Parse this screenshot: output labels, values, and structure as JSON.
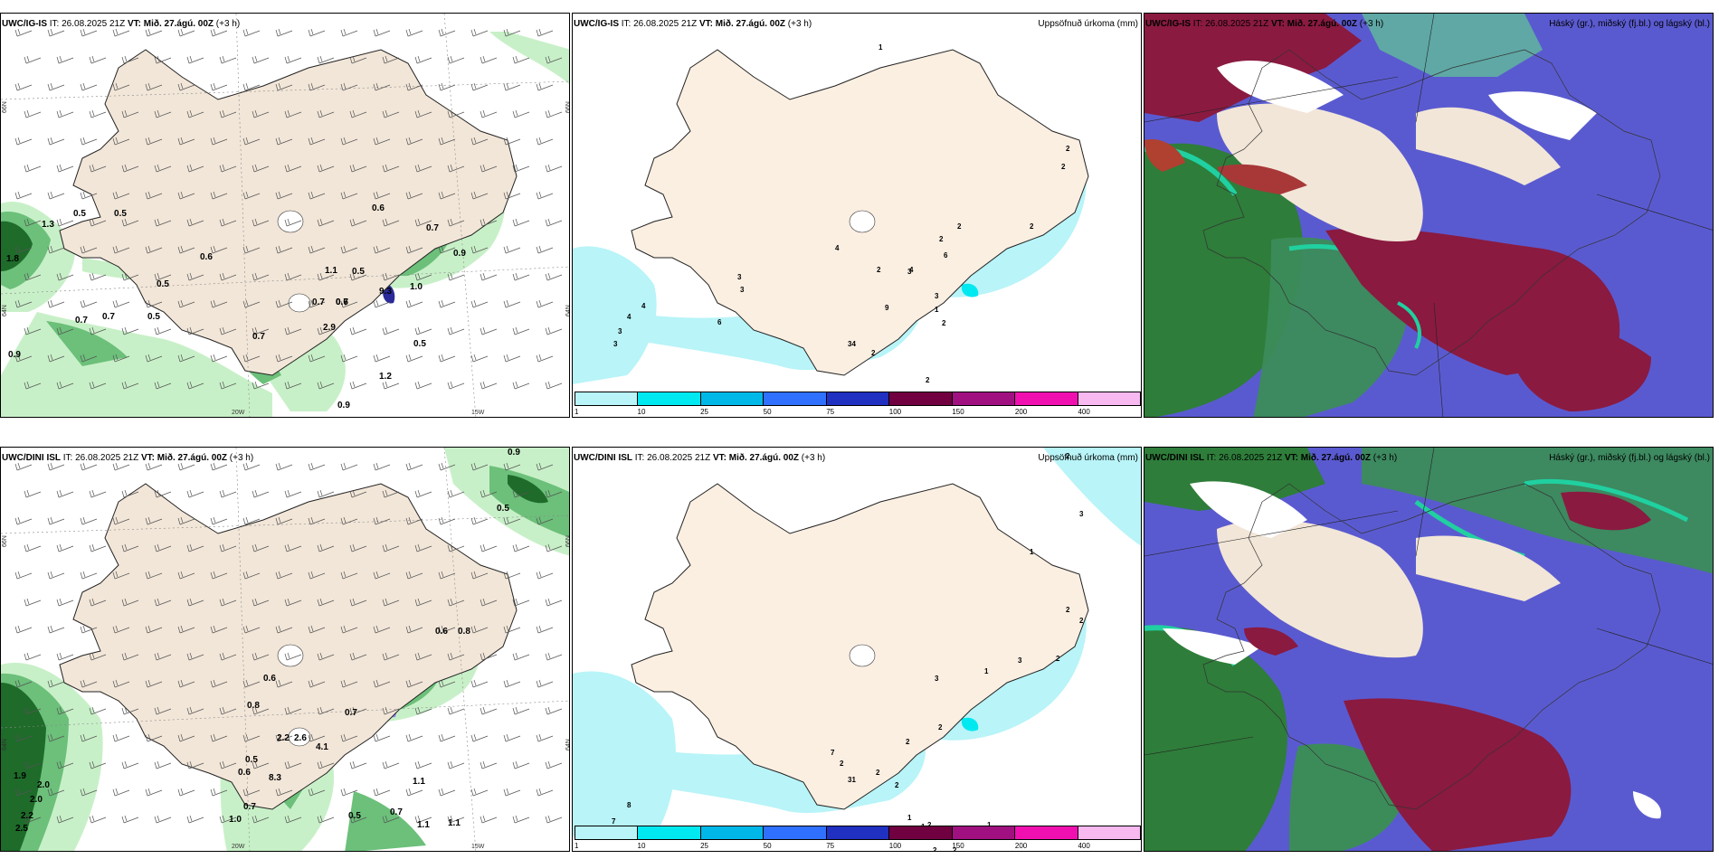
{
  "colors": {
    "land": "#f2e6d8",
    "land_precip": "#fbefe2",
    "sea": "#ffffff",
    "cyan_light": "#b8f4f8",
    "green_light": "#c8f0c8",
    "green_mid": "#6cc07a",
    "green_dark": "#1e6b2a",
    "blue_dark": "#2a2a9a",
    "high_cloud": "#2e7d3a",
    "mid_cloud": "#8a1a40",
    "low_cloud": "#5a5ad0",
    "cloud_edge": "#20d0a0"
  },
  "legend": {
    "colors": [
      "#b8f4f8",
      "#00e8f0",
      "#00b8e8",
      "#3070ff",
      "#2030c0",
      "#700040",
      "#a01080",
      "#f010b0",
      "#f8b8f0"
    ],
    "labels": [
      "1",
      "10",
      "25",
      "50",
      "75",
      "100",
      "150",
      "200",
      "400"
    ]
  },
  "axis": {
    "lat_66": "66N",
    "lat_64": "64N",
    "lon_20": "20W",
    "lon_15": "15W"
  },
  "panels": [
    {
      "model": "UWC/IG-IS",
      "it_label": "IT:",
      "it_value": "26.08.2025 21Z",
      "vt_label": "VT:",
      "vt_value": "Mið. 27.ágú. 00Z",
      "lead": "(+3 h)",
      "right_title": ""
    },
    {
      "model": "UWC/IG-IS",
      "it_label": "IT:",
      "it_value": "26.08.2025 21Z",
      "vt_label": "VT:",
      "vt_value": "Mið. 27.ágú. 00Z",
      "lead": "(+3 h)",
      "right_title": "Uppsöfnuð úrkoma (mm)"
    },
    {
      "model": "UWC/IG-IS",
      "it_label": "IT:",
      "it_value": "26.08.2025 21Z",
      "vt_label": "VT:",
      "vt_value": "Mið. 27.ágú. 00Z",
      "lead": "(+3 h)",
      "right_title": "Háský (gr.), miðský (fj.bl.) og lágský (bl.)"
    },
    {
      "model": "UWC/DINI ISL",
      "it_label": "IT:",
      "it_value": "26.08.2025 21Z",
      "vt_label": "VT:",
      "vt_value": "Mið. 27.ágú. 00Z",
      "lead": "(+3 h)",
      "right_title": ""
    },
    {
      "model": "UWC/DINI ISL",
      "it_label": "IT:",
      "it_value": "26.08.2025 21Z",
      "vt_label": "VT:",
      "vt_value": "Mið. 27.ágú. 00Z",
      "lead": "(+3 h)",
      "right_title": "Uppsöfnuð úrkoma (mm)"
    },
    {
      "model": "UWC/DINI ISL",
      "it_label": "IT:",
      "it_value": "26.08.2025 21Z",
      "vt_label": "VT:",
      "vt_value": "Mið. 27.ágú. 00Z",
      "lead": "(+3 h)",
      "right_title": "Háský (gr.), miðský (fj.bl.) og lágský (bl.)"
    }
  ],
  "precip_labels_top": [
    "0.5",
    "0.5",
    "1.3",
    "1.8",
    "0.7",
    "0.7",
    "0.5",
    "0.9",
    "0.6",
    "0.5",
    "0.7",
    "2.9",
    "0.7",
    "0.6",
    "0.7",
    "1.1",
    "0.5",
    "9.3",
    "0.7",
    "1.0",
    "0.9",
    "0.6",
    "0.5",
    "1.2",
    "0.9"
  ],
  "precip_labels_bottom": [
    "0.9",
    "0.5",
    "0.6",
    "0.8",
    "0.6",
    "0.8",
    "0.7",
    "2.2",
    "2.6",
    "4.1",
    "8.3",
    "0.5",
    "0.6",
    "1.1",
    "1.9",
    "2.0",
    "2.0",
    "2.2",
    "2.5",
    "1.0",
    "0.7",
    "0.5",
    "0.7",
    "1.1",
    "1.1"
  ],
  "accum_labels_top": [
    "1",
    "2",
    "2",
    "2",
    "2",
    "2",
    "4",
    "3",
    "3",
    "6",
    "4",
    "2",
    "3",
    "9",
    "3",
    "1",
    "2",
    "4",
    "4",
    "3",
    "3",
    "6",
    "34",
    "2",
    "2"
  ],
  "accum_labels_bottom": [
    "2",
    "3",
    "1",
    "2",
    "2",
    "2",
    "3",
    "1",
    "3",
    "2",
    "2",
    "7",
    "2",
    "2",
    "8",
    "7",
    "31",
    "2",
    "1",
    "2",
    "1",
    "1",
    "2",
    "2",
    "1"
  ]
}
